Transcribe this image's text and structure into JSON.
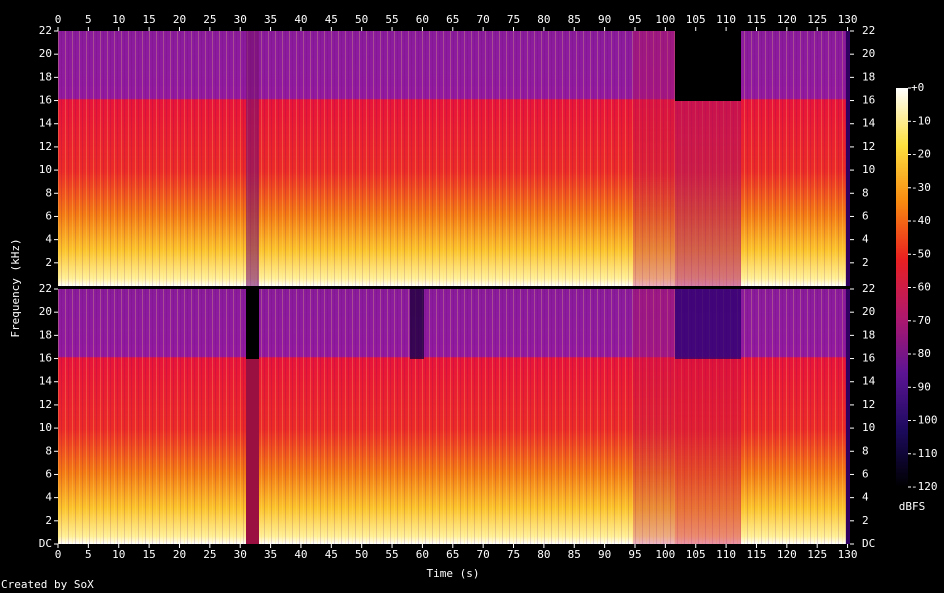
{
  "chart_data": {
    "type": "spectrogram",
    "xlabel": "Time (s)",
    "ylabel": "Frequency (kHz)",
    "credit": "Created by SoX",
    "xlim": [
      0,
      130.4
    ],
    "xticks": [
      0,
      5,
      10,
      15,
      20,
      25,
      30,
      35,
      40,
      45,
      50,
      55,
      60,
      65,
      70,
      75,
      80,
      85,
      90,
      95,
      100,
      105,
      110,
      115,
      120,
      125,
      130
    ],
    "panels": [
      {
        "ylim": [
          0,
          22
        ],
        "yticks": [
          2,
          4,
          6,
          8,
          10,
          12,
          14,
          16,
          18,
          20,
          22
        ]
      },
      {
        "ylim": [
          0,
          22
        ],
        "yticks": [
          {
            "value": 0,
            "label": "DC"
          },
          2,
          4,
          6,
          8,
          10,
          12,
          14,
          16,
          18,
          20,
          22
        ]
      }
    ],
    "colorbar": {
      "label": "dBFS",
      "lim": [
        -120,
        0
      ],
      "ticks": [
        {
          "value": 0,
          "label": "+0"
        },
        -10,
        -20,
        -30,
        -40,
        -50,
        -60,
        -70,
        -80,
        -90,
        -100,
        -110,
        -120
      ],
      "colors": [
        "#000000",
        "#1c0a5e",
        "#5c1494",
        "#b0186c",
        "#ea2020",
        "#f88a10",
        "#fde040",
        "#ffffff"
      ]
    }
  }
}
